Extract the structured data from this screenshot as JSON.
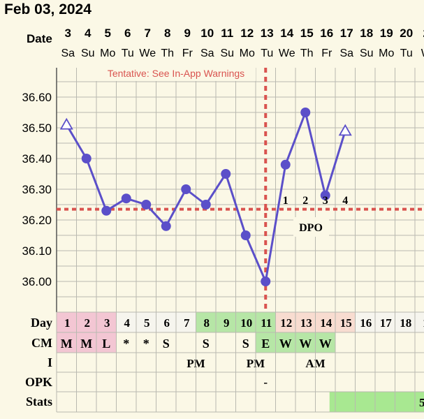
{
  "header": {
    "date_title": "Feb 03, 2024"
  },
  "labels": {
    "date_row": "Date",
    "day_row": "Day",
    "cm_row": "CM",
    "i_row": "I",
    "opk_row": "OPK",
    "stats_row": "Stats",
    "warning": "Tentative: See In-App Warnings",
    "dpo": "DPO"
  },
  "colors": {
    "line": "#5b4fc9",
    "coverline": "#d9534f",
    "warning_text": "#d9534f",
    "menses": "#f3c6d3",
    "fertile": "#b6e6a6",
    "luteal": "#f8dcd0",
    "stats_fill": "#a8e891",
    "grid": "#b9b9b0"
  },
  "chart_data": {
    "type": "line",
    "title": "",
    "xlabel": "",
    "ylabel": "",
    "ylim": [
      35.9,
      36.72
    ],
    "yticks": [
      "36.60",
      "36.50",
      "36.40",
      "36.30",
      "36.20",
      "36.10",
      "36.00"
    ],
    "coverline": 36.235,
    "ovulation_day": 11,
    "dates": [
      "3",
      "4",
      "5",
      "6",
      "7",
      "8",
      "9",
      "10",
      "11",
      "12",
      "13",
      "14",
      "15",
      "16",
      "17",
      "18",
      "19",
      "20",
      "2"
    ],
    "weekdays": [
      "Sa",
      "Su",
      "Mo",
      "Tu",
      "We",
      "Th",
      "Fr",
      "Sa",
      "Su",
      "Mo",
      "Tu",
      "We",
      "Th",
      "Fr",
      "Sa",
      "Su",
      "Mo",
      "Tu",
      "W"
    ],
    "cycle_days": [
      "1",
      "2",
      "3",
      "4",
      "5",
      "6",
      "7",
      "8",
      "9",
      "10",
      "11",
      "12",
      "13",
      "14",
      "15",
      "16",
      "17",
      "18",
      "1"
    ],
    "series": [
      {
        "values": [
          36.51,
          36.4,
          36.23,
          36.27,
          36.25,
          36.18,
          36.3,
          36.25,
          36.35,
          36.15,
          36.0,
          36.38,
          36.55,
          36.28,
          36.49,
          null,
          null,
          null,
          null
        ],
        "markers": [
          "open",
          "filled",
          "filled",
          "filled",
          "filled",
          "filled",
          "filled",
          "filled",
          "filled",
          "filled",
          "filled",
          "filled",
          "filled",
          "filled",
          "open",
          null,
          null,
          null,
          null
        ]
      }
    ],
    "dpo_marks": [
      {
        "day": 12,
        "label": "1"
      },
      {
        "day": 13,
        "label": "2"
      },
      {
        "day": 14,
        "label": "3"
      },
      {
        "day": 15,
        "label": "4"
      }
    ],
    "cm": [
      "M",
      "M",
      "L",
      "*",
      "*",
      "S",
      "",
      "S",
      "",
      "S",
      "E",
      "W",
      "W",
      "W",
      "",
      "",
      "",
      "",
      ""
    ],
    "intercourse": [
      {
        "day": 7,
        "label": "PM"
      },
      {
        "day": 10,
        "label": "PM"
      },
      {
        "day": 13,
        "label": "AM"
      }
    ],
    "opk": [
      "",
      "",
      "",
      "",
      "",
      "",
      "",
      "",
      "",
      "",
      "-",
      "",
      "",
      "",
      "",
      "",
      "",
      "",
      ""
    ],
    "stats_fill_from_day": 14,
    "stats_label": "5"
  }
}
